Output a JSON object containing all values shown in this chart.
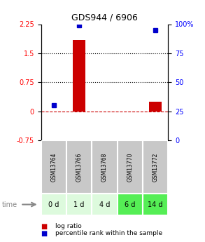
{
  "title": "GDS944 / 6906",
  "samples": [
    "GSM13764",
    "GSM13766",
    "GSM13768",
    "GSM13770",
    "GSM13772"
  ],
  "time_labels": [
    "0 d",
    "1 d",
    "4 d",
    "6 d",
    "14 d"
  ],
  "log_ratio": [
    0.0,
    1.85,
    0.0,
    0.0,
    0.25
  ],
  "percentile": [
    30,
    99,
    0,
    0,
    95
  ],
  "bar_color_red": "#cc0000",
  "bar_color_blue": "#0000cc",
  "ylim_left": [
    -0.75,
    2.25
  ],
  "ylim_right": [
    0,
    100
  ],
  "yticks_left": [
    -0.75,
    0,
    0.75,
    1.5,
    2.25
  ],
  "yticks_right": [
    0,
    25,
    50,
    75,
    100
  ],
  "ytick_labels_left": [
    "-0.75",
    "0",
    "0.75",
    "1.5",
    "2.25"
  ],
  "ytick_labels_right": [
    "0",
    "25",
    "50",
    "75",
    "100%"
  ],
  "hline_y": [
    0.75,
    1.5
  ],
  "zero_line_y": 0,
  "cell_bg_gsm": "#c8c8c8",
  "time_row_colors": [
    "#ddfadd",
    "#ddfadd",
    "#ddfadd",
    "#55ee55",
    "#55ee55"
  ],
  "legend_log_ratio_color": "#cc0000",
  "legend_percentile_color": "#0000cc",
  "bar_width": 0.5
}
